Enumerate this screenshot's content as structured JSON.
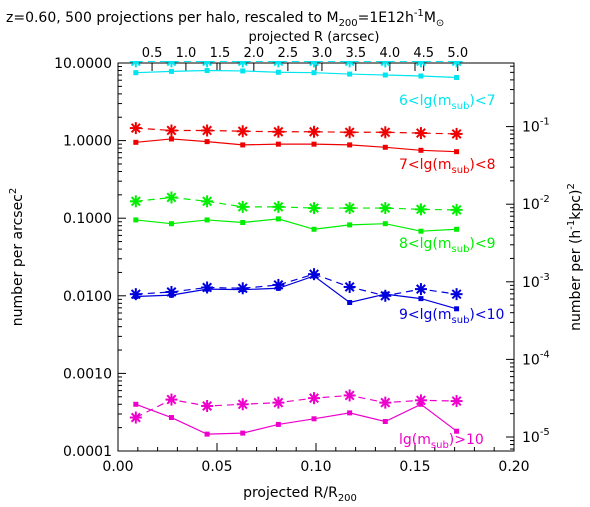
{
  "chart_data": {
    "type": "line",
    "title": "z=0.60, 500 projections per halo, rescaled to M",
    "title_sub": "200",
    "title_tail": "=1E12h",
    "title_sup": "-1",
    "title_end": "M",
    "title_end_sub": "⊙",
    "xlabel": "projected R/R",
    "xlabel_sub": "200",
    "ylabel": "number per arcsec",
    "ylabel_sup": "2",
    "ylabel_right": "number per (h",
    "ylabel_right_sup": "-1",
    "ylabel_right_tail": "kpc)",
    "ylabel_right_sup2": "2",
    "top_axis_label": "projected R (arcsec)",
    "xlim": [
      0.0,
      0.2
    ],
    "ylim": [
      0.0001,
      10.0
    ],
    "y_scale": "log",
    "x_ticks": [
      "0.00",
      "0.05",
      "0.10",
      "0.15",
      "0.20"
    ],
    "y_ticks": [
      "10.0000",
      "1.0000",
      "0.1000",
      "0.0100",
      "0.0010",
      "0.0001"
    ],
    "top_ticks": [
      "0.5",
      "1.0",
      "1.5",
      "2.0",
      "2.5",
      "3.0",
      "3.5",
      "4.0",
      "4.5",
      "5.0"
    ],
    "top_tick_positions_data_x": [
      0.0172,
      0.0343,
      0.0515,
      0.0686,
      0.0858,
      0.103,
      0.1201,
      0.1373,
      0.1544,
      0.1716
    ],
    "right_ticks": [
      {
        "base": "10",
        "exp": "-1",
        "value": 0.1
      },
      {
        "base": "10",
        "exp": "-2",
        "value": 0.01
      },
      {
        "base": "10",
        "exp": "-3",
        "value": 0.001
      },
      {
        "base": "10",
        "exp": "-4",
        "value": 0.0001
      },
      {
        "base": "10",
        "exp": "-5",
        "value": 1e-05
      }
    ],
    "right_ylim": [
      6.6e-06,
      0.66
    ],
    "x": [
      0.009,
      0.027,
      0.045,
      0.063,
      0.081,
      0.099,
      0.117,
      0.135,
      0.153,
      0.171
    ],
    "series": [
      {
        "name_pre": "6<lg(m",
        "name_sub": "sub",
        "name_post": ")<7",
        "color": "#00e5ee",
        "solid": [
          7.5,
          7.8,
          8.0,
          7.9,
          7.6,
          7.5,
          7.2,
          7.0,
          6.8,
          6.5
        ],
        "dashed": [
          10.5,
          10.5,
          10.5,
          10.5,
          10.5,
          10.5,
          10.5,
          10.5,
          10.5,
          10.5
        ]
      },
      {
        "name_pre": "7<lg(m",
        "name_sub": "sub",
        "name_post": ")<8",
        "color": "#ee0000",
        "solid": [
          0.95,
          1.05,
          0.97,
          0.88,
          0.9,
          0.9,
          0.88,
          0.82,
          0.75,
          0.72
        ],
        "dashed": [
          1.45,
          1.35,
          1.35,
          1.32,
          1.3,
          1.3,
          1.28,
          1.28,
          1.25,
          1.22
        ]
      },
      {
        "name_pre": "8<lg(m",
        "name_sub": "sub",
        "name_post": ")<9",
        "color": "#00ee00",
        "solid": [
          0.095,
          0.085,
          0.095,
          0.088,
          0.098,
          0.072,
          0.082,
          0.085,
          0.068,
          0.072
        ],
        "dashed": [
          0.165,
          0.185,
          0.165,
          0.14,
          0.14,
          0.135,
          0.135,
          0.135,
          0.13,
          0.128
        ]
      },
      {
        "name_pre": "9<lg(m",
        "name_sub": "sub",
        "name_post": ")<10",
        "color": "#0000dd",
        "solid": [
          0.0098,
          0.0102,
          0.0122,
          0.012,
          0.0125,
          0.018,
          0.0082,
          0.0105,
          0.0092,
          0.0068
        ],
        "dashed": [
          0.0105,
          0.0112,
          0.0128,
          0.0125,
          0.0138,
          0.019,
          0.013,
          0.01,
          0.0122,
          0.0105
        ]
      },
      {
        "name_pre": "lg(m",
        "name_sub": "sub",
        "name_post": ")>10",
        "color": "#ee00cc",
        "solid": [
          0.0004,
          0.00027,
          0.000165,
          0.00017,
          0.00022,
          0.00026,
          0.00031,
          0.00024,
          0.0004,
          0.00018
        ],
        "dashed": [
          0.00027,
          0.00046,
          0.00038,
          0.0004,
          0.00042,
          0.00048,
          0.00052,
          0.00042,
          0.00045,
          0.00044
        ]
      }
    ]
  }
}
